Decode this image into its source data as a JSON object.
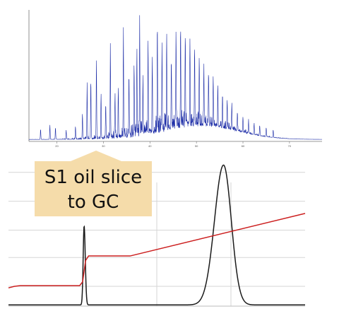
{
  "annotation": {
    "line1": "S1 oil slice",
    "line2": "to GC"
  },
  "colors": {
    "gc_trace": "#1f2fa8",
    "pyro_trace": "#1a1a1a",
    "temperature_trace": "#cc1f1f",
    "callout_fill": "#f5dcaa",
    "grid": "#d6d6d6"
  },
  "chart_data": [
    {
      "type": "line",
      "name": "gc-chromatogram",
      "x_range": [
        14,
        77
      ],
      "y_range": [
        0,
        100
      ],
      "x_ticks": [
        20,
        30,
        40,
        50,
        60,
        70
      ],
      "x_tick_labels": [
        "20",
        "30",
        "40",
        "50",
        "60",
        "70"
      ],
      "baseline": 1.5,
      "hump": {
        "center": 51,
        "width": 11,
        "height": 10
      },
      "peaks": [
        [
          16.5,
          8
        ],
        [
          18.5,
          11
        ],
        [
          19.7,
          9
        ],
        [
          22.0,
          7
        ],
        [
          24.0,
          10
        ],
        [
          25.5,
          20
        ],
        [
          26.5,
          42
        ],
        [
          27.3,
          46
        ],
        [
          28.5,
          60
        ],
        [
          29.5,
          33
        ],
        [
          30.5,
          26
        ],
        [
          31.5,
          72
        ],
        [
          32.5,
          35
        ],
        [
          33.2,
          37
        ],
        [
          34.3,
          84
        ],
        [
          35.5,
          46
        ],
        [
          36.6,
          52
        ],
        [
          37.2,
          59
        ],
        [
          37.8,
          89
        ],
        [
          38.5,
          39
        ],
        [
          39.6,
          64
        ],
        [
          40.5,
          58
        ],
        [
          41.6,
          80
        ],
        [
          42.6,
          65
        ],
        [
          43.6,
          74
        ],
        [
          44.6,
          53
        ],
        [
          45.6,
          69
        ],
        [
          46.6,
          76
        ],
        [
          47.6,
          71
        ],
        [
          48.6,
          64
        ],
        [
          49.6,
          59
        ],
        [
          50.6,
          52
        ],
        [
          51.6,
          46
        ],
        [
          52.6,
          41
        ],
        [
          53.6,
          37
        ],
        [
          54.6,
          32
        ],
        [
          55.6,
          26
        ],
        [
          56.6,
          22
        ],
        [
          57.6,
          20
        ],
        [
          58.8,
          14
        ],
        [
          60.0,
          12
        ],
        [
          61.2,
          10
        ],
        [
          62.4,
          9
        ],
        [
          63.6,
          8
        ],
        [
          65.0,
          7
        ],
        [
          66.5,
          6
        ]
      ]
    },
    {
      "type": "line",
      "name": "pyrolysis-trace",
      "x_range": [
        0,
        100
      ],
      "y_range": [
        0,
        100
      ],
      "gridlines_y": [
        13,
        32,
        50,
        69,
        88
      ],
      "gridlines_x": [
        50,
        75
      ],
      "series": [
        {
          "peaks": [
            {
              "center": 25.5,
              "height": 52,
              "width_left": 0.45,
              "width_right": 0.55
            },
            {
              "center": 72.5,
              "height": 92,
              "width_left": 4.3,
              "width_right": 3.7
            }
          ]
        },
        {
          "points": [
            [
              0,
              12
            ],
            [
              2,
              13
            ],
            [
              4,
              13.5
            ],
            [
              24,
              13.5
            ],
            [
              25,
              16
            ],
            [
              26,
              30
            ],
            [
              27,
              33
            ],
            [
              41,
              33
            ],
            [
              100,
              61
            ]
          ]
        }
      ]
    }
  ]
}
